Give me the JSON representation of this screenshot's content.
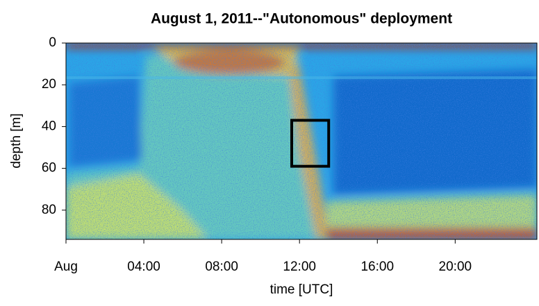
{
  "chart_data": {
    "type": "heatmap",
    "title": "August 1, 2011--\"Autonomous\" deployment",
    "x_label": "time [UTC]",
    "y_label": "depth [m]",
    "xlim": [
      0,
      24.2
    ],
    "ylim": [
      0,
      94
    ],
    "y_inverted": true,
    "xticks": [
      {
        "value": 0,
        "label": "Aug"
      },
      {
        "value": 4,
        "label": "04:00"
      },
      {
        "value": 8,
        "label": "08:00"
      },
      {
        "value": 12,
        "label": "12:00"
      },
      {
        "value": 16,
        "label": "16:00"
      },
      {
        "value": 20,
        "label": "20:00"
      }
    ],
    "yticks": [
      0,
      20,
      40,
      60,
      80
    ],
    "highlight_box": {
      "x": [
        11.6,
        13.5
      ],
      "y": [
        37,
        59
      ],
      "color": "#000000"
    }
  }
}
